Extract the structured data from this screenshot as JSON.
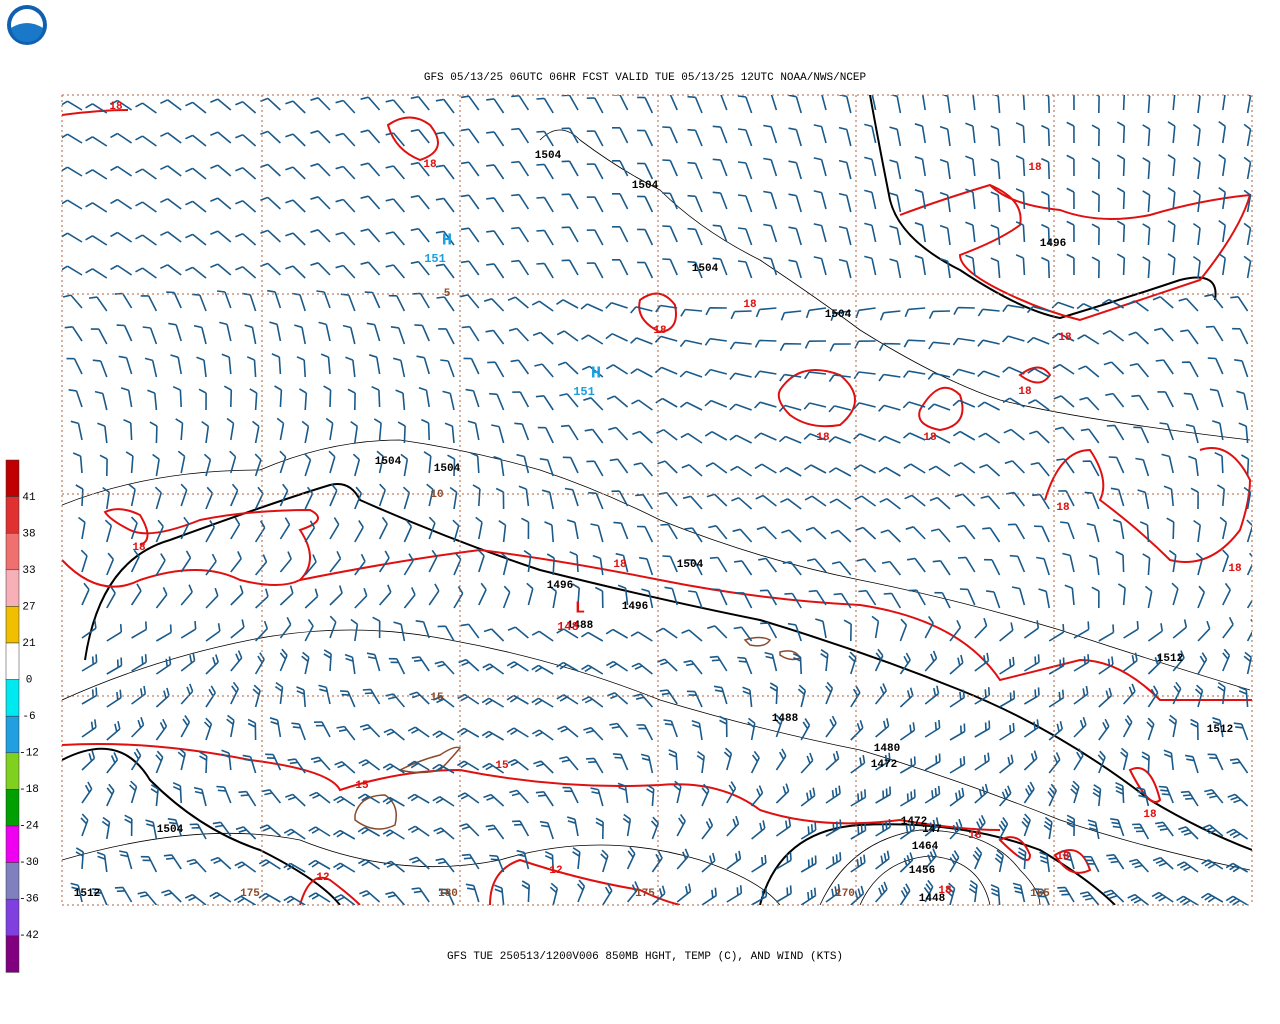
{
  "header": {
    "title": "GFS 05/13/25 06UTC 06HR FCST VALID TUE 05/13/25 12UTC NOAA/NWS/NCEP"
  },
  "footer": {
    "caption": "GFS TUE 250513/1200V006 850MB HGHT, TEMP (C), AND WIND (KTS)"
  },
  "colorbar": {
    "labels": [
      41,
      38,
      33,
      27,
      21,
      0,
      -6,
      -12,
      -18,
      -24,
      -30,
      -36,
      -42
    ]
  },
  "map": {
    "height_labels": [
      "1504",
      "1504",
      "1504",
      "1504",
      "1496",
      "1504",
      "1504",
      "1496",
      "1496",
      "1504",
      "1488",
      "1512",
      "1512",
      "1488",
      "1480",
      "1472",
      "1504",
      "1512",
      "1472",
      "1464",
      "1456",
      "1448",
      "147"
    ],
    "temperature_labels": [
      "18",
      "18",
      "18",
      "18",
      "18",
      "18",
      "18",
      "18",
      "18",
      "18",
      "18",
      "18",
      "18",
      "18",
      "18",
      "18",
      "18",
      "15",
      "15",
      "12",
      "12"
    ],
    "pressure_centers": [
      {
        "symbol": "H",
        "value": "151"
      },
      {
        "symbol": "H",
        "value": "151"
      },
      {
        "symbol": "L",
        "value": "148"
      }
    ],
    "lat_labels": [
      "5",
      "10",
      "15"
    ],
    "lon_labels": [
      "175",
      "180",
      "175",
      "170",
      "165"
    ]
  }
}
